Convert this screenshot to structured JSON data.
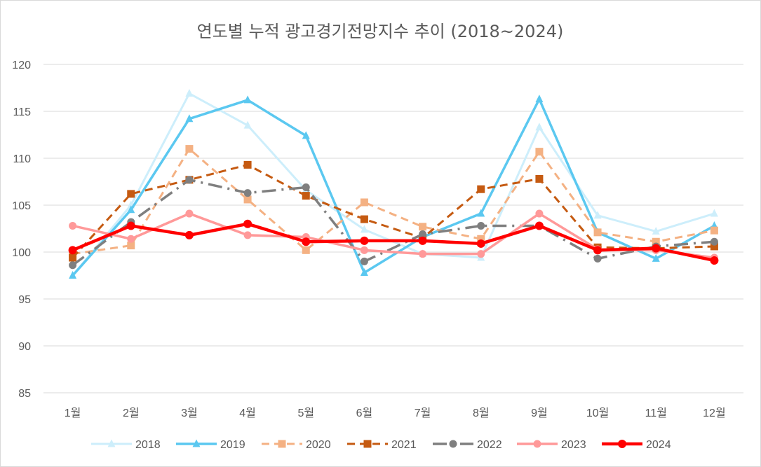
{
  "chart_data": {
    "type": "line",
    "title": "연도별 누적 광고경기전망지수 추이 (2018~2024)",
    "xlabel": "",
    "ylabel": "",
    "categories": [
      "1월",
      "2월",
      "3월",
      "4월",
      "5월",
      "6월",
      "7월",
      "8월",
      "9월",
      "10월",
      "11월",
      "12월"
    ],
    "ylim": [
      85,
      120
    ],
    "yticks": [
      85,
      90,
      95,
      100,
      105,
      110,
      115,
      120
    ],
    "ytick_labels": [
      "85",
      "90",
      "95",
      "100",
      "105",
      "110",
      "115",
      "120"
    ],
    "grid": true,
    "legend_position": "bottom",
    "series": [
      {
        "name": "2018",
        "color": "#cdeefb",
        "dash": "solid",
        "marker": "triangle",
        "width": 3,
        "values": [
          97.5,
          105.0,
          116.9,
          113.5,
          106.6,
          102.4,
          99.8,
          99.4,
          113.3,
          103.9,
          102.2,
          104.1
        ]
      },
      {
        "name": "2019",
        "color": "#5bc8f0",
        "dash": "solid",
        "marker": "triangle",
        "width": 3.5,
        "values": [
          97.5,
          104.5,
          114.2,
          116.2,
          112.4,
          97.8,
          101.6,
          104.1,
          116.3,
          102.1,
          99.3,
          102.8
        ]
      },
      {
        "name": "2020",
        "color": "#f4b183",
        "dash": "dashed",
        "marker": "square",
        "width": 3,
        "values": [
          99.8,
          100.7,
          111.0,
          105.6,
          100.2,
          105.3,
          102.7,
          101.4,
          110.7,
          102.1,
          101.1,
          102.3
        ]
      },
      {
        "name": "2021",
        "color": "#c55a11",
        "dash": "dashed",
        "marker": "square",
        "width": 3,
        "values": [
          99.4,
          106.2,
          107.7,
          109.3,
          106.0,
          103.5,
          101.5,
          106.7,
          107.8,
          100.5,
          100.4,
          100.6
        ]
      },
      {
        "name": "2022",
        "color": "#7f7f7f",
        "dash": "dashdot",
        "marker": "circle",
        "width": 3.5,
        "values": [
          98.6,
          103.2,
          107.7,
          106.3,
          106.9,
          99.0,
          101.9,
          102.8,
          102.8,
          99.3,
          100.6,
          101.1
        ]
      },
      {
        "name": "2023",
        "color": "#ff9999",
        "dash": "solid",
        "marker": "circle",
        "width": 3.5,
        "values": [
          102.8,
          101.4,
          104.1,
          101.8,
          101.6,
          100.2,
          99.8,
          99.8,
          104.1,
          100.3,
          100.2,
          99.4
        ]
      },
      {
        "name": "2024",
        "color": "#ff0000",
        "dash": "solid",
        "marker": "circle",
        "width": 4.5,
        "values": [
          100.2,
          102.8,
          101.8,
          103.0,
          101.1,
          101.2,
          101.2,
          100.9,
          102.8,
          100.2,
          100.4,
          99.1
        ]
      }
    ]
  }
}
